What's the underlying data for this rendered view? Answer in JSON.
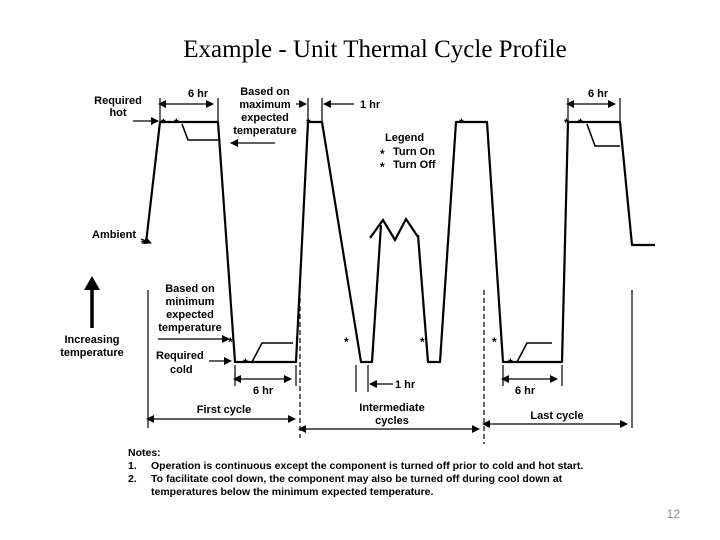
{
  "slide": {
    "title": "Example - Unit Thermal Cycle Profile",
    "page_number": "12"
  },
  "diagram": {
    "required_hot": [
      "Required",
      "hot"
    ],
    "ambient": "Ambient",
    "required_cold": [
      "Required",
      "cold"
    ],
    "increasing_temperature": [
      "Increasing",
      "temperature"
    ],
    "based_on_maximum": [
      "Based on",
      "maximum",
      "expected",
      "temperature"
    ],
    "based_on_minimum": [
      "Based on",
      "minimum",
      "expected",
      "temperature"
    ],
    "legend": {
      "title": "Legend",
      "turn_on": "Turn On",
      "turn_off": "Turn Off"
    },
    "durations": {
      "top_left": "6 hr",
      "top_middle": "1 hr",
      "top_right": "6 hr",
      "bottom_left": "6 hr",
      "bottom_middle": "1 hr",
      "bottom_right": "6 hr"
    },
    "cycles": {
      "first": "First cycle",
      "intermediate": [
        "Intermediate",
        "cycles"
      ],
      "last": "Last cycle"
    },
    "notes": {
      "heading": "Notes:",
      "items": [
        {
          "num": "1.",
          "lines": [
            "Operation is continuous except the component is turned off prior to cold and hot start."
          ]
        },
        {
          "num": "2.",
          "lines": [
            "To facilitate cool down, the component may also be turned off during cool down at",
            "temperatures below the minimum expected temperature."
          ]
        }
      ]
    }
  }
}
